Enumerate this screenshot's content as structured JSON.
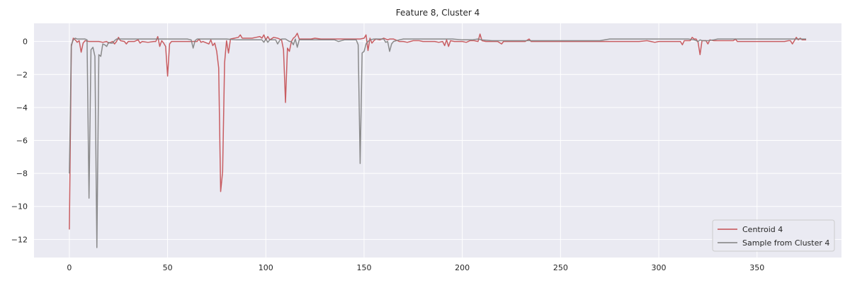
{
  "chart_data": {
    "type": "line",
    "title": "Feature 8, Cluster 4",
    "xlabel": "",
    "ylabel": "",
    "xlim": [
      -18,
      393
    ],
    "ylim": [
      -13.1,
      1.1
    ],
    "x_ticks": [
      0,
      50,
      100,
      150,
      200,
      250,
      300,
      350
    ],
    "y_ticks": [
      0,
      -2,
      -4,
      -6,
      -8,
      -10,
      -12
    ],
    "grid": true,
    "legend_position": "lower-right",
    "series": [
      {
        "name": "Centroid 4",
        "color": "#c44e52",
        "points": [
          [
            0,
            -11.4
          ],
          [
            1,
            -0.3
          ],
          [
            2,
            0.2
          ],
          [
            3,
            0.1
          ],
          [
            4,
            -0.05
          ],
          [
            5,
            0.05
          ],
          [
            6,
            -0.65
          ],
          [
            7,
            -0.1
          ],
          [
            8,
            0.05
          ],
          [
            10,
            0.0
          ],
          [
            12,
            0.0
          ],
          [
            15,
            0.0
          ],
          [
            17,
            -0.05
          ],
          [
            19,
            0.0
          ],
          [
            20,
            -0.1
          ],
          [
            22,
            0.0
          ],
          [
            23,
            -0.15
          ],
          [
            24,
            0.0
          ],
          [
            25,
            0.25
          ],
          [
            26,
            0.05
          ],
          [
            28,
            0.0
          ],
          [
            29,
            -0.15
          ],
          [
            30,
            0.0
          ],
          [
            33,
            0.0
          ],
          [
            35,
            0.1
          ],
          [
            36,
            -0.1
          ],
          [
            37,
            0.0
          ],
          [
            40,
            -0.05
          ],
          [
            43,
            0.0
          ],
          [
            44,
            0.0
          ],
          [
            45,
            0.3
          ],
          [
            46,
            -0.3
          ],
          [
            47,
            0.05
          ],
          [
            48,
            -0.1
          ],
          [
            49,
            -0.3
          ],
          [
            50,
            -2.1
          ],
          [
            51,
            -0.15
          ],
          [
            52,
            0.0
          ],
          [
            55,
            0.0
          ],
          [
            58,
            0.0
          ],
          [
            62,
            0.0
          ],
          [
            65,
            0.0
          ],
          [
            66,
            0.15
          ],
          [
            67,
            -0.05
          ],
          [
            68,
            0.0
          ],
          [
            70,
            -0.1
          ],
          [
            71,
            -0.15
          ],
          [
            72,
            0.1
          ],
          [
            73,
            -0.25
          ],
          [
            74,
            -0.1
          ],
          [
            75,
            -0.6
          ],
          [
            76,
            -1.6
          ],
          [
            77,
            -9.1
          ],
          [
            78,
            -7.9
          ],
          [
            79,
            -1.3
          ],
          [
            80,
            0.05
          ],
          [
            81,
            -0.7
          ],
          [
            82,
            0.15
          ],
          [
            84,
            0.2
          ],
          [
            86,
            0.25
          ],
          [
            87,
            0.4
          ],
          [
            88,
            0.2
          ],
          [
            90,
            0.2
          ],
          [
            93,
            0.2
          ],
          [
            95,
            0.25
          ],
          [
            97,
            0.3
          ],
          [
            98,
            0.2
          ],
          [
            99,
            0.4
          ],
          [
            100,
            0.1
          ],
          [
            101,
            0.3
          ],
          [
            102,
            0.1
          ],
          [
            104,
            0.25
          ],
          [
            106,
            0.2
          ],
          [
            107,
            0.15
          ],
          [
            108,
            0.1
          ],
          [
            109,
            -0.5
          ],
          [
            110,
            -3.7
          ],
          [
            111,
            -0.4
          ],
          [
            112,
            -0.6
          ],
          [
            113,
            0.0
          ],
          [
            114,
            0.2
          ],
          [
            115,
            0.3
          ],
          [
            116,
            0.5
          ],
          [
            117,
            0.15
          ],
          [
            118,
            0.15
          ],
          [
            120,
            0.15
          ],
          [
            123,
            0.15
          ],
          [
            125,
            0.2
          ],
          [
            128,
            0.15
          ],
          [
            130,
            0.15
          ],
          [
            133,
            0.15
          ],
          [
            135,
            0.15
          ],
          [
            138,
            0.15
          ],
          [
            140,
            0.15
          ],
          [
            143,
            0.15
          ],
          [
            145,
            0.15
          ],
          [
            148,
            0.15
          ],
          [
            150,
            0.2
          ],
          [
            151,
            0.4
          ],
          [
            152,
            -0.55
          ],
          [
            153,
            0.2
          ],
          [
            154,
            -0.1
          ],
          [
            155,
            0.05
          ],
          [
            156,
            0.15
          ],
          [
            158,
            0.1
          ],
          [
            159,
            0.15
          ],
          [
            160,
            0.2
          ],
          [
            162,
            0.1
          ],
          [
            163,
            0.15
          ],
          [
            165,
            0.15
          ],
          [
            168,
            0.0
          ],
          [
            170,
            0.0
          ],
          [
            172,
            -0.05
          ],
          [
            175,
            0.05
          ],
          [
            178,
            0.05
          ],
          [
            180,
            0.0
          ],
          [
            182,
            0.0
          ],
          [
            184,
            0.0
          ],
          [
            186,
            0.0
          ],
          [
            188,
            -0.05
          ],
          [
            190,
            0.0
          ],
          [
            191,
            -0.25
          ],
          [
            192,
            0.1
          ],
          [
            193,
            -0.3
          ],
          [
            194,
            0.05
          ],
          [
            196,
            0.0
          ],
          [
            198,
            0.0
          ],
          [
            200,
            0.0
          ],
          [
            202,
            -0.05
          ],
          [
            204,
            0.05
          ],
          [
            206,
            0.05
          ],
          [
            208,
            0.0
          ],
          [
            209,
            0.45
          ],
          [
            210,
            0.05
          ],
          [
            212,
            0.0
          ],
          [
            215,
            0.0
          ],
          [
            218,
            0.0
          ],
          [
            220,
            -0.15
          ],
          [
            221,
            0.0
          ],
          [
            224,
            0.0
          ],
          [
            228,
            0.0
          ],
          [
            232,
            0.0
          ],
          [
            234,
            0.15
          ],
          [
            235,
            0.0
          ],
          [
            238,
            0.0
          ],
          [
            242,
            0.0
          ],
          [
            246,
            0.0
          ],
          [
            250,
            0.0
          ],
          [
            254,
            0.0
          ],
          [
            258,
            0.0
          ],
          [
            262,
            0.0
          ],
          [
            266,
            0.0
          ],
          [
            270,
            0.0
          ],
          [
            274,
            0.0
          ],
          [
            278,
            0.0
          ],
          [
            282,
            0.0
          ],
          [
            286,
            0.0
          ],
          [
            290,
            0.0
          ],
          [
            294,
            0.05
          ],
          [
            296,
            0.0
          ],
          [
            298,
            -0.05
          ],
          [
            300,
            0.0
          ],
          [
            304,
            0.0
          ],
          [
            308,
            0.0
          ],
          [
            311,
            0.0
          ],
          [
            312,
            -0.2
          ],
          [
            313,
            0.05
          ],
          [
            316,
            0.05
          ],
          [
            317,
            0.25
          ],
          [
            318,
            0.15
          ],
          [
            319,
            0.15
          ],
          [
            320,
            -0.05
          ],
          [
            321,
            -0.8
          ],
          [
            322,
            0.05
          ],
          [
            324,
            0.05
          ],
          [
            325,
            -0.15
          ],
          [
            326,
            0.1
          ],
          [
            328,
            0.05
          ],
          [
            330,
            0.05
          ],
          [
            334,
            0.05
          ],
          [
            338,
            0.05
          ],
          [
            339,
            0.15
          ],
          [
            340,
            0.0
          ],
          [
            344,
            0.0
          ],
          [
            348,
            0.0
          ],
          [
            352,
            0.0
          ],
          [
            356,
            0.0
          ],
          [
            360,
            0.0
          ],
          [
            364,
            0.0
          ],
          [
            366,
            0.05
          ],
          [
            367,
            0.05
          ],
          [
            368,
            -0.15
          ],
          [
            369,
            0.05
          ],
          [
            370,
            0.25
          ],
          [
            371,
            0.1
          ],
          [
            372,
            0.2
          ],
          [
            373,
            0.1
          ],
          [
            375,
            0.1
          ]
        ]
      },
      {
        "name": "Sample from Cluster 4",
        "color": "#7f7f7f",
        "points": [
          [
            0,
            -8.0
          ],
          [
            1,
            -0.2
          ],
          [
            2,
            0.1
          ],
          [
            3,
            0.2
          ],
          [
            4,
            0.15
          ],
          [
            6,
            0.15
          ],
          [
            8,
            0.15
          ],
          [
            9,
            0.1
          ],
          [
            10,
            -9.5
          ],
          [
            11,
            -0.5
          ],
          [
            12,
            -0.35
          ],
          [
            13,
            -0.9
          ],
          [
            14,
            -12.5
          ],
          [
            15,
            -0.8
          ],
          [
            16,
            -0.9
          ],
          [
            17,
            -0.15
          ],
          [
            18,
            -0.2
          ],
          [
            19,
            -0.3
          ],
          [
            20,
            -0.05
          ],
          [
            21,
            -0.1
          ],
          [
            22,
            -0.1
          ],
          [
            23,
            0.05
          ],
          [
            24,
            0.15
          ],
          [
            26,
            0.15
          ],
          [
            30,
            0.15
          ],
          [
            35,
            0.15
          ],
          [
            40,
            0.15
          ],
          [
            45,
            0.15
          ],
          [
            50,
            0.15
          ],
          [
            55,
            0.15
          ],
          [
            60,
            0.15
          ],
          [
            62,
            0.1
          ],
          [
            63,
            -0.4
          ],
          [
            64,
            0.05
          ],
          [
            65,
            0.15
          ],
          [
            70,
            0.15
          ],
          [
            75,
            0.15
          ],
          [
            80,
            0.15
          ],
          [
            85,
            0.1
          ],
          [
            90,
            0.1
          ],
          [
            95,
            0.1
          ],
          [
            98,
            0.1
          ],
          [
            99,
            -0.05
          ],
          [
            100,
            0.15
          ],
          [
            101,
            -0.05
          ],
          [
            102,
            0.1
          ],
          [
            105,
            0.1
          ],
          [
            106,
            -0.15
          ],
          [
            107,
            0.05
          ],
          [
            108,
            0.15
          ],
          [
            110,
            0.15
          ],
          [
            112,
            0.0
          ],
          [
            113,
            0.0
          ],
          [
            114,
            -0.2
          ],
          [
            115,
            0.15
          ],
          [
            116,
            -0.35
          ],
          [
            117,
            0.1
          ],
          [
            120,
            0.1
          ],
          [
            125,
            0.1
          ],
          [
            130,
            0.1
          ],
          [
            135,
            0.1
          ],
          [
            137,
            0.0
          ],
          [
            140,
            0.1
          ],
          [
            145,
            0.1
          ],
          [
            146,
            0.1
          ],
          [
            147,
            -0.2
          ],
          [
            148,
            -7.4
          ],
          [
            149,
            -0.7
          ],
          [
            150,
            -0.6
          ],
          [
            151,
            -0.15
          ],
          [
            152,
            0.0
          ],
          [
            153,
            0.1
          ],
          [
            155,
            0.15
          ],
          [
            158,
            0.15
          ],
          [
            160,
            0.15
          ],
          [
            161,
            -0.05
          ],
          [
            162,
            0.0
          ],
          [
            163,
            -0.6
          ],
          [
            164,
            -0.15
          ],
          [
            165,
            0.0
          ],
          [
            168,
            0.1
          ],
          [
            170,
            0.15
          ],
          [
            175,
            0.15
          ],
          [
            180,
            0.15
          ],
          [
            185,
            0.15
          ],
          [
            190,
            0.15
          ],
          [
            195,
            0.15
          ],
          [
            200,
            0.1
          ],
          [
            205,
            0.1
          ],
          [
            208,
            0.15
          ],
          [
            210,
            0.1
          ],
          [
            215,
            0.05
          ],
          [
            220,
            0.05
          ],
          [
            225,
            0.05
          ],
          [
            230,
            0.05
          ],
          [
            235,
            0.05
          ],
          [
            240,
            0.05
          ],
          [
            245,
            0.05
          ],
          [
            250,
            0.05
          ],
          [
            255,
            0.05
          ],
          [
            260,
            0.05
          ],
          [
            265,
            0.05
          ],
          [
            270,
            0.05
          ],
          [
            275,
            0.15
          ],
          [
            280,
            0.15
          ],
          [
            285,
            0.15
          ],
          [
            290,
            0.15
          ],
          [
            295,
            0.15
          ],
          [
            300,
            0.15
          ],
          [
            305,
            0.15
          ],
          [
            310,
            0.15
          ],
          [
            315,
            0.15
          ],
          [
            318,
            0.1
          ],
          [
            319,
            0.05
          ],
          [
            320,
            0.0
          ],
          [
            321,
            0.1
          ],
          [
            322,
            0.05
          ],
          [
            325,
            0.05
          ],
          [
            328,
            0.1
          ],
          [
            330,
            0.15
          ],
          [
            335,
            0.15
          ],
          [
            340,
            0.15
          ],
          [
            345,
            0.15
          ],
          [
            350,
            0.15
          ],
          [
            355,
            0.15
          ],
          [
            360,
            0.15
          ],
          [
            365,
            0.15
          ],
          [
            370,
            0.15
          ],
          [
            375,
            0.15
          ]
        ]
      }
    ]
  }
}
